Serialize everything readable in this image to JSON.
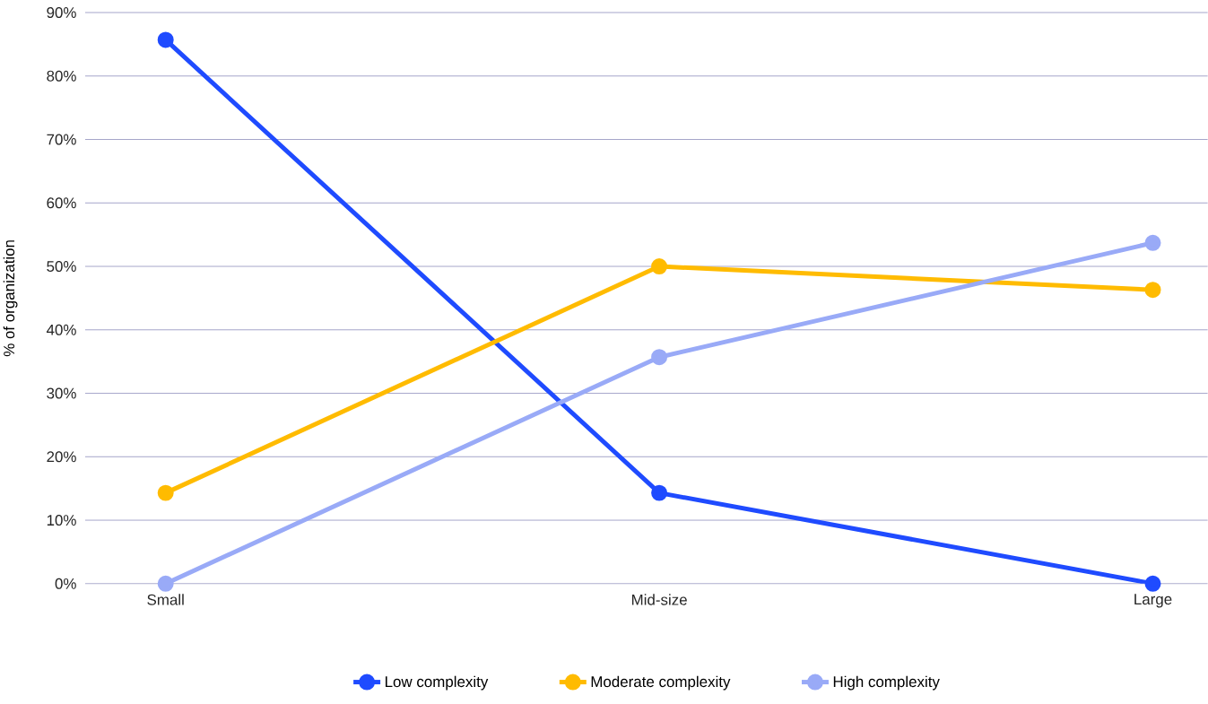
{
  "chart_data": {
    "type": "line",
    "ylabel": "% of organization",
    "categories": [
      "Small",
      "Mid-size",
      "Large"
    ],
    "series": [
      {
        "name": "Low complexity",
        "color": "#1f4bff",
        "values": [
          85.7,
          14.3,
          0
        ]
      },
      {
        "name": "Moderate complexity",
        "color": "#ffbb00",
        "values": [
          14.3,
          50,
          46.3
        ]
      },
      {
        "name": "High complexity",
        "color": "#99aaf7",
        "values": [
          0,
          35.7,
          53.7
        ]
      }
    ],
    "ylim": [
      0,
      90
    ],
    "yticks": [
      {
        "value": 0,
        "label": "0%"
      },
      {
        "value": 10,
        "label": "10%"
      },
      {
        "value": 20,
        "label": "20%"
      },
      {
        "value": 30,
        "label": "30%"
      },
      {
        "value": 40,
        "label": "40%"
      },
      {
        "value": 50,
        "label": "50%"
      },
      {
        "value": 60,
        "label": "60%"
      },
      {
        "value": 70,
        "label": "70%"
      },
      {
        "value": 80,
        "label": "80%"
      },
      {
        "value": 90,
        "label": "90%"
      }
    ],
    "grid": "y",
    "legend": "bottom",
    "marker": "circle",
    "line_style": "solid"
  }
}
